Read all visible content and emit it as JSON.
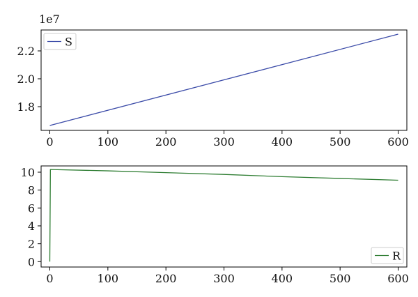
{
  "chart_data": [
    {
      "type": "line",
      "title": "",
      "xlabel": "",
      "ylabel": "",
      "offset_text": "1e7",
      "xlim": [
        -15,
        615
      ],
      "ylim": [
        16300000,
        23500000
      ],
      "x_ticks": [
        0,
        100,
        200,
        300,
        400,
        500,
        600
      ],
      "x_tick_labels": [
        "0",
        "100",
        "200",
        "300",
        "400",
        "500",
        "600"
      ],
      "y_ticks": [
        18000000,
        20000000,
        22000000
      ],
      "y_tick_labels": [
        "1.8",
        "2.0",
        "2.2"
      ],
      "grid": false,
      "legend_position": "top-left",
      "series": [
        {
          "name": "S",
          "color": "#3b4ba8",
          "x": [
            0,
            600
          ],
          "y": [
            16650000,
            23200000
          ]
        }
      ]
    },
    {
      "type": "line",
      "title": "",
      "xlabel": "",
      "ylabel": "",
      "xlim": [
        -15,
        615
      ],
      "ylim": [
        -0.6,
        10.7
      ],
      "x_ticks": [
        0,
        100,
        200,
        300,
        400,
        500,
        600
      ],
      "x_tick_labels": [
        "0",
        "100",
        "200",
        "300",
        "400",
        "500",
        "600"
      ],
      "y_ticks": [
        0,
        2,
        4,
        6,
        8,
        10
      ],
      "y_tick_labels": [
        "0",
        "2",
        "4",
        "6",
        "8",
        "10"
      ],
      "grid": false,
      "legend_position": "bottom-right",
      "series": [
        {
          "name": "R",
          "color": "#2e7d32",
          "x": [
            0,
            1,
            100,
            200,
            300,
            400,
            500,
            600
          ],
          "y": [
            0,
            10.3,
            10.15,
            9.95,
            9.75,
            9.5,
            9.3,
            9.1
          ]
        }
      ]
    }
  ]
}
